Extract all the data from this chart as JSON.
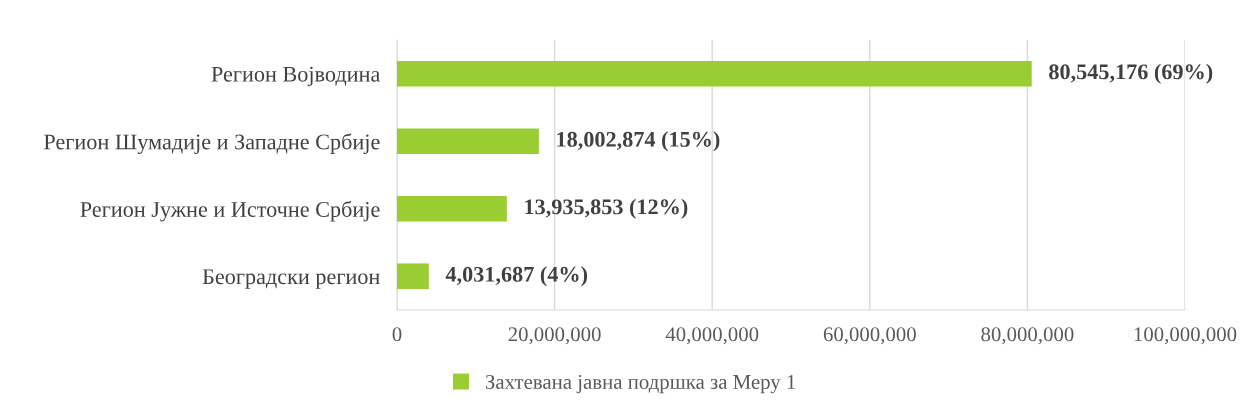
{
  "chart_data": {
    "type": "bar",
    "orientation": "horizontal",
    "categories": [
      "Регион Војводина",
      "Регион Шумадије и Западне Србије",
      "Регион Јужне и Источне Србије",
      "Београдски регион"
    ],
    "series": [
      {
        "name": "Захтевана јавна подршка за Меру 1",
        "color": "#9acd32",
        "values": [
          80545176,
          18002874,
          13935853,
          4031687
        ],
        "value_labels": [
          "80,545,176 (69%)",
          "18,002,874 (15%)",
          "13,935,853 (12%)",
          "4,031,687 (4%)"
        ]
      }
    ],
    "xlim": [
      0,
      100000000
    ],
    "xticks": [
      0,
      {
        "value": 20000000,
        "label": "20,000,000"
      },
      {
        "value": 40000000,
        "label": "40,000,000"
      },
      {
        "value": 60000000,
        "label": "60,000,000"
      },
      {
        "value": 80000000,
        "label": "80,000,000"
      },
      {
        "value": 100000000,
        "label": "100,000,000"
      }
    ],
    "grid": "x",
    "legend": "bottom"
  }
}
